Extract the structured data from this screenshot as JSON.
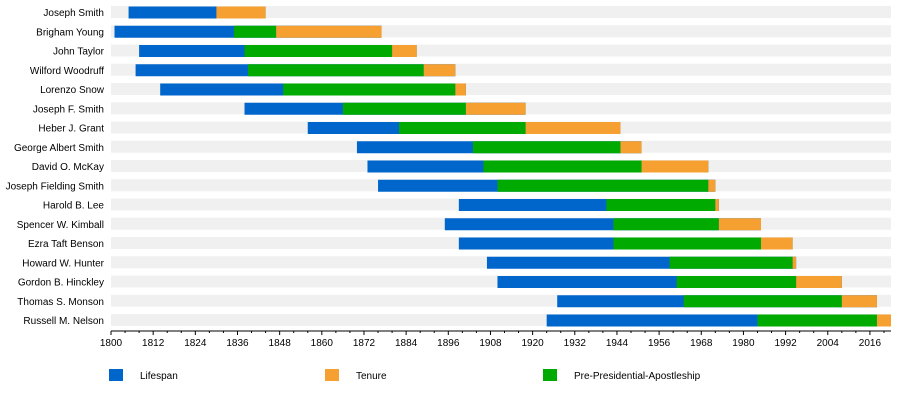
{
  "chart_data": {
    "type": "bar",
    "subtype": "timeline-gantt",
    "title": "",
    "xlabel": "",
    "ylabel": "",
    "xlim": [
      1800,
      2022
    ],
    "x_ticks": [
      1800,
      1812,
      1824,
      1836,
      1848,
      1860,
      1872,
      1884,
      1896,
      1908,
      1920,
      1932,
      1944,
      1956,
      1968,
      1980,
      1992,
      2004,
      2016
    ],
    "grid": false,
    "legend_position": "bottom",
    "categories": [
      "Joseph Smith",
      "Brigham Young",
      "John Taylor",
      "Wilford Woodruff",
      "Lorenzo Snow",
      "Joseph F. Smith",
      "Heber J. Grant",
      "George Albert Smith",
      "David O. McKay",
      "Joseph Fielding Smith",
      "Harold B. Lee",
      "Spencer W. Kimball",
      "Ezra Taft Benson",
      "Howard W. Hunter",
      "Gordon B. Hinckley",
      "Thomas S. Monson",
      "Russell M. Nelson"
    ],
    "series": [
      {
        "name": "Lifespan",
        "color": "#0066cc",
        "values": [
          [
            1805,
            1844
          ],
          [
            1801,
            1877
          ],
          [
            1808,
            1887
          ],
          [
            1807,
            1898
          ],
          [
            1814,
            1901
          ],
          [
            1838,
            1918
          ],
          [
            1856,
            1945
          ],
          [
            1870,
            1951
          ],
          [
            1873,
            1970
          ],
          [
            1876,
            1972
          ],
          [
            1899,
            1973
          ],
          [
            1895,
            1985
          ],
          [
            1899,
            1994
          ],
          [
            1907,
            1995
          ],
          [
            1910,
            2008
          ],
          [
            1927,
            2018
          ],
          [
            1924,
            2022
          ]
        ]
      },
      {
        "name": "Pre-Presidential-Apostleship",
        "color": "#00aa00",
        "values": [
          null,
          [
            1835,
            1847
          ],
          [
            1838,
            1880
          ],
          [
            1839,
            1889
          ],
          [
            1849,
            1898
          ],
          [
            1866,
            1901
          ],
          [
            1882,
            1918
          ],
          [
            1903,
            1945
          ],
          [
            1906,
            1951
          ],
          [
            1910,
            1970
          ],
          [
            1941,
            1972
          ],
          [
            1943,
            1973
          ],
          [
            1943,
            1985
          ],
          [
            1959,
            1994
          ],
          [
            1961,
            1995
          ],
          [
            1963,
            2008
          ],
          [
            1984,
            2018
          ]
        ]
      },
      {
        "name": "Tenure",
        "color": "#f5a030",
        "values": [
          [
            1830,
            1844
          ],
          [
            1847,
            1877
          ],
          [
            1880,
            1887
          ],
          [
            1889,
            1898
          ],
          [
            1898,
            1901
          ],
          [
            1901,
            1918
          ],
          [
            1918,
            1945
          ],
          [
            1945,
            1951
          ],
          [
            1951,
            1970
          ],
          [
            1970,
            1972
          ],
          [
            1972,
            1973
          ],
          [
            1973,
            1985
          ],
          [
            1985,
            1994
          ],
          [
            1994,
            1995
          ],
          [
            1995,
            2008
          ],
          [
            2008,
            2018
          ],
          [
            2018,
            2022
          ]
        ]
      }
    ],
    "legend": [
      {
        "label": "Lifespan",
        "color": "#0066cc"
      },
      {
        "label": "Tenure",
        "color": "#f5a030"
      },
      {
        "label": "Pre-Presidential-Apostleship",
        "color": "#00aa00"
      }
    ],
    "colors": {
      "row_band": "#f0f0f0",
      "axis": "#000000"
    }
  }
}
